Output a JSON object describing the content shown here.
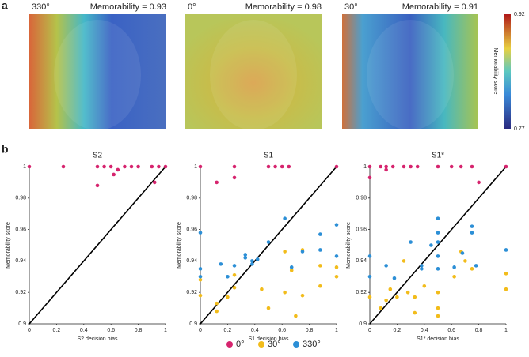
{
  "panel_labels": [
    "a",
    "b"
  ],
  "images": [
    {
      "angle": "330°",
      "memorability": "Memorability = 0.93"
    },
    {
      "angle": "0°",
      "memorability": "Memorability = 0.98"
    },
    {
      "angle": "30°",
      "memorability": "Memorability = 0.91"
    }
  ],
  "colorbar": {
    "label": "Memorability score",
    "ticks": [
      0.92,
      0.77
    ]
  },
  "chart_data": [
    {
      "type": "scatter",
      "title": "S2",
      "xlabel": "S2 decision bias",
      "ylabel": "Memorability score",
      "xlim": [
        0,
        1
      ],
      "ylim": [
        0.9,
        1
      ],
      "xticks": [
        0,
        0.2,
        0.4,
        0.6,
        0.8,
        1
      ],
      "yticks": [
        0.9,
        0.92,
        0.94,
        0.96,
        0.98,
        1
      ],
      "series": [
        {
          "color": "#d6246e",
          "x": [
            0,
            0.25,
            0.5,
            0.5,
            0.55,
            0.6,
            0.62,
            0.65,
            0.7,
            0.75,
            0.8,
            0.9,
            0.92,
            0.95,
            1
          ],
          "values": [
            1,
            1,
            1,
            0.988,
            1,
            1,
            0.995,
            0.998,
            1,
            1,
            1,
            1,
            0.99,
            1,
            1
          ]
        }
      ]
    },
    {
      "type": "scatter",
      "title": "S1",
      "xlabel": "S1 decision bias",
      "ylabel": "Memorability score",
      "xlim": [
        0,
        1
      ],
      "ylim": [
        0.9,
        1
      ],
      "xticks": [
        0,
        0.2,
        0.4,
        0.6,
        0.8,
        1
      ],
      "yticks": [
        0.9,
        0.92,
        0.94,
        0.96,
        0.98,
        1
      ],
      "series": [
        {
          "name": "0°",
          "color": "#d6246e",
          "x": [
            0,
            0.12,
            0.25,
            0.25,
            0.5,
            0.55,
            0.6,
            0.65,
            1
          ],
          "values": [
            1,
            0.99,
            1,
            0.993,
            1,
            1,
            1,
            1,
            1
          ]
        },
        {
          "name": "30°",
          "color": "#f2bc1b",
          "x": [
            0,
            0,
            0.12,
            0.12,
            0.2,
            0.25,
            0.25,
            0.45,
            0.5,
            0.62,
            0.62,
            0.67,
            0.7,
            0.75,
            0.75,
            0.88,
            0.88,
            1,
            1
          ],
          "values": [
            0.928,
            0.918,
            0.913,
            0.908,
            0.917,
            0.923,
            0.931,
            0.922,
            0.91,
            0.946,
            0.92,
            0.934,
            0.905,
            0.947,
            0.918,
            0.937,
            0.924,
            0.936,
            0.93
          ]
        },
        {
          "name": "330°",
          "color": "#2c8fd6",
          "x": [
            0,
            0,
            0,
            0.15,
            0.2,
            0.25,
            0.33,
            0.33,
            0.38,
            0.38,
            0.42,
            0.5,
            0.62,
            0.67,
            0.75,
            0.88,
            0.88,
            1,
            1
          ],
          "values": [
            0.958,
            0.935,
            0.93,
            0.938,
            0.93,
            0.937,
            0.944,
            0.942,
            0.94,
            0.938,
            0.941,
            0.952,
            0.967,
            0.936,
            0.946,
            0.957,
            0.947,
            0.963,
            0.943
          ]
        }
      ]
    },
    {
      "type": "scatter",
      "title": "S1*",
      "xlabel": "S1* decision bias",
      "ylabel": "Memorability score",
      "xlim": [
        0,
        1
      ],
      "ylim": [
        0.9,
        1
      ],
      "xticks": [
        0,
        0.2,
        0.4,
        0.6,
        0.8,
        1
      ],
      "yticks": [
        0.9,
        0.92,
        0.94,
        0.96,
        0.98,
        1
      ],
      "series": [
        {
          "color": "#d6246e",
          "x": [
            0,
            0,
            0.08,
            0.12,
            0.12,
            0.17,
            0.25,
            0.3,
            0.35,
            0.5,
            0.6,
            0.67,
            0.75,
            0.8,
            1
          ],
          "values": [
            1,
            0.993,
            1,
            1,
            0.998,
            1,
            1,
            1,
            1,
            1,
            1,
            1,
            1,
            0.99,
            1
          ]
        },
        {
          "color": "#f2bc1b",
          "x": [
            0,
            0.08,
            0.12,
            0.15,
            0.2,
            0.25,
            0.28,
            0.33,
            0.33,
            0.4,
            0.5,
            0.5,
            0.5,
            0.62,
            0.67,
            0.7,
            0.75,
            1,
            1
          ],
          "values": [
            0.917,
            0.91,
            0.915,
            0.922,
            0.917,
            0.94,
            0.92,
            0.917,
            0.907,
            0.924,
            0.91,
            0.905,
            0.92,
            0.93,
            0.946,
            0.94,
            0.935,
            0.932,
            0.922
          ]
        },
        {
          "color": "#2c8fd6",
          "x": [
            0,
            0,
            0.12,
            0.18,
            0.3,
            0.38,
            0.38,
            0.45,
            0.5,
            0.5,
            0.5,
            0.5,
            0.5,
            0.62,
            0.68,
            0.75,
            0.75,
            0.78,
            1
          ],
          "values": [
            0.943,
            0.93,
            0.937,
            0.929,
            0.952,
            0.937,
            0.935,
            0.95,
            0.952,
            0.958,
            0.967,
            0.943,
            0.935,
            0.936,
            0.945,
            0.962,
            0.958,
            0.937,
            0.947
          ]
        }
      ]
    }
  ]
}
